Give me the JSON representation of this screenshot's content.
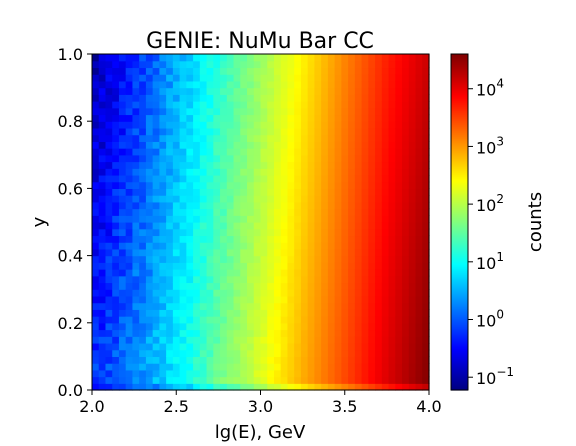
{
  "chart_data": {
    "type": "heatmap",
    "title": "GENIE: NuMu Bar CC",
    "xlabel": "lg(E), GeV",
    "ylabel": "y",
    "xlim": [
      2.0,
      4.0
    ],
    "ylim": [
      0.0,
      1.0
    ],
    "x_ticks": [
      "2.0",
      "2.5",
      "3.0",
      "3.5",
      "4.0"
    ],
    "y_ticks": [
      "0.0",
      "0.2",
      "0.4",
      "0.6",
      "0.8",
      "1.0"
    ],
    "colorbar": {
      "label": "counts",
      "scale": "log",
      "colormap": "jet",
      "range": [
        0.06,
        40000
      ],
      "ticks": [
        {
          "value": 0.1,
          "base": "10",
          "exp": "−1"
        },
        {
          "value": 1,
          "base": "10",
          "exp": "0"
        },
        {
          "value": 10,
          "base": "10",
          "exp": "1"
        },
        {
          "value": 100,
          "base": "10",
          "exp": "2"
        },
        {
          "value": 1000,
          "base": "10",
          "exp": "3"
        },
        {
          "value": 10000,
          "base": "10",
          "exp": "4"
        }
      ]
    },
    "grid": false,
    "bins": {
      "x": 50,
      "y": 50
    },
    "profile": {
      "description": "counts rise roughly exponentially with lg(E) and decrease slowly with y",
      "x_samples": [
        2.0,
        2.25,
        2.5,
        2.75,
        3.0,
        3.25,
        3.5,
        3.75,
        4.0
      ],
      "counts_at_y0": [
        0.6,
        2.0,
        8.0,
        40.0,
        180.0,
        800.0,
        3000.0,
        12000.0,
        40000.0
      ],
      "counts_at_y1": [
        0.1,
        0.5,
        3.0,
        15.0,
        70.0,
        300.0,
        1300.0,
        5000.0,
        15000.0
      ]
    }
  }
}
